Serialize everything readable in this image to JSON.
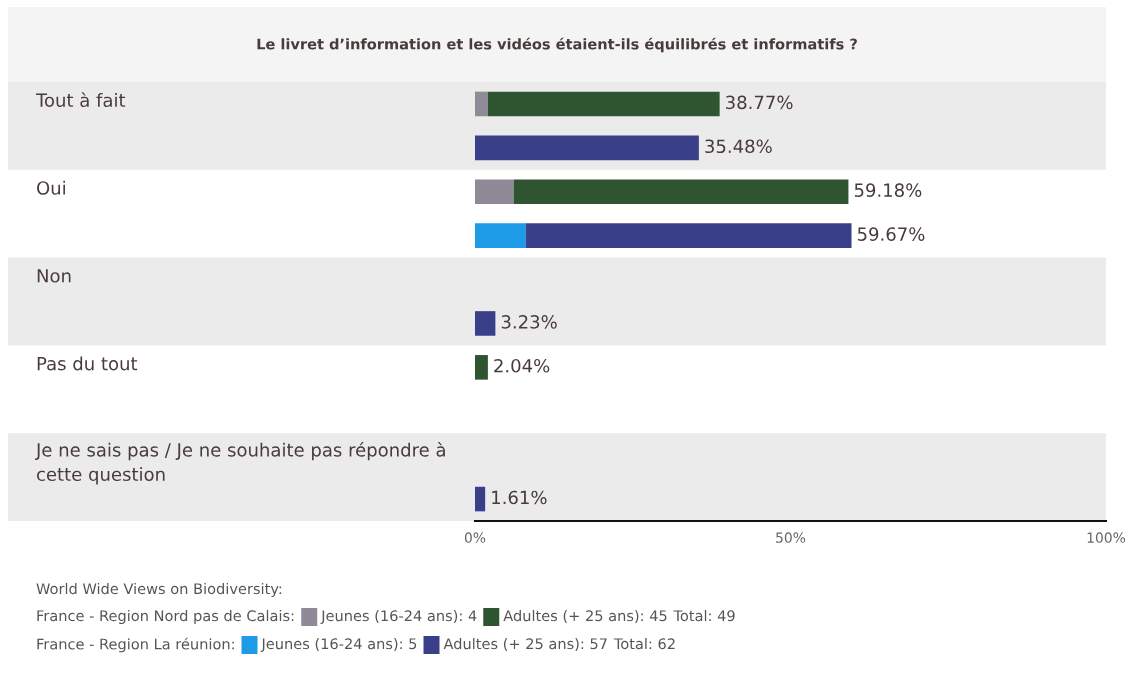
{
  "chart_data": {
    "type": "bar",
    "orientation": "horizontal",
    "stacked": true,
    "title": "Le livret d’information et les vidéos étaient-ils équilibrés et informatifs ?",
    "categories": [
      "Tout à fait",
      null,
      "Oui",
      null,
      "Non",
      null,
      "Pas du tout",
      null,
      "Je ne sais pas / Je ne souhaite pas répondre à cette question",
      null
    ],
    "series": [
      {
        "name": "Jeunes (16-24 ans): 4",
        "color": "#8e8a98",
        "values": [
          2.04,
          null,
          6.12,
          null,
          null,
          null,
          null,
          null,
          null,
          null
        ]
      },
      {
        "name": "Adultes (+ 25 ans): 45",
        "color": "#2e5430",
        "values": [
          36.73,
          null,
          53.06,
          null,
          null,
          null,
          2.04,
          null,
          null,
          null
        ]
      },
      {
        "name": "Jeunes (16-24 ans): 5",
        "color": "#1e9be6",
        "values": [
          null,
          null,
          null,
          8.06,
          null,
          null,
          null,
          null,
          null,
          null
        ]
      },
      {
        "name": "Adultes (+ 25 ans): 57",
        "color": "#3a3f8a",
        "values": [
          null,
          35.48,
          null,
          51.61,
          null,
          3.23,
          null,
          null,
          null,
          1.61
        ]
      }
    ],
    "totals": [
      "38.77%",
      "35.48%",
      "59.18%",
      "59.67%",
      null,
      "3.23%",
      "2.04%",
      null,
      null,
      "1.61%"
    ],
    "xlim": [
      0,
      100
    ],
    "xticks": [
      {
        "value": 0,
        "label": "0%"
      },
      {
        "value": 50,
        "label": "50%"
      },
      {
        "value": 100,
        "label": "100%"
      }
    ],
    "grid": false,
    "legend": "bottom left",
    "annotations": [
      "World Wide Views on Biodiversity:",
      "France - Region Nord pas de Calais:",
      "Total: 49",
      "France - Region La réunion:",
      "Total: 62"
    ]
  }
}
